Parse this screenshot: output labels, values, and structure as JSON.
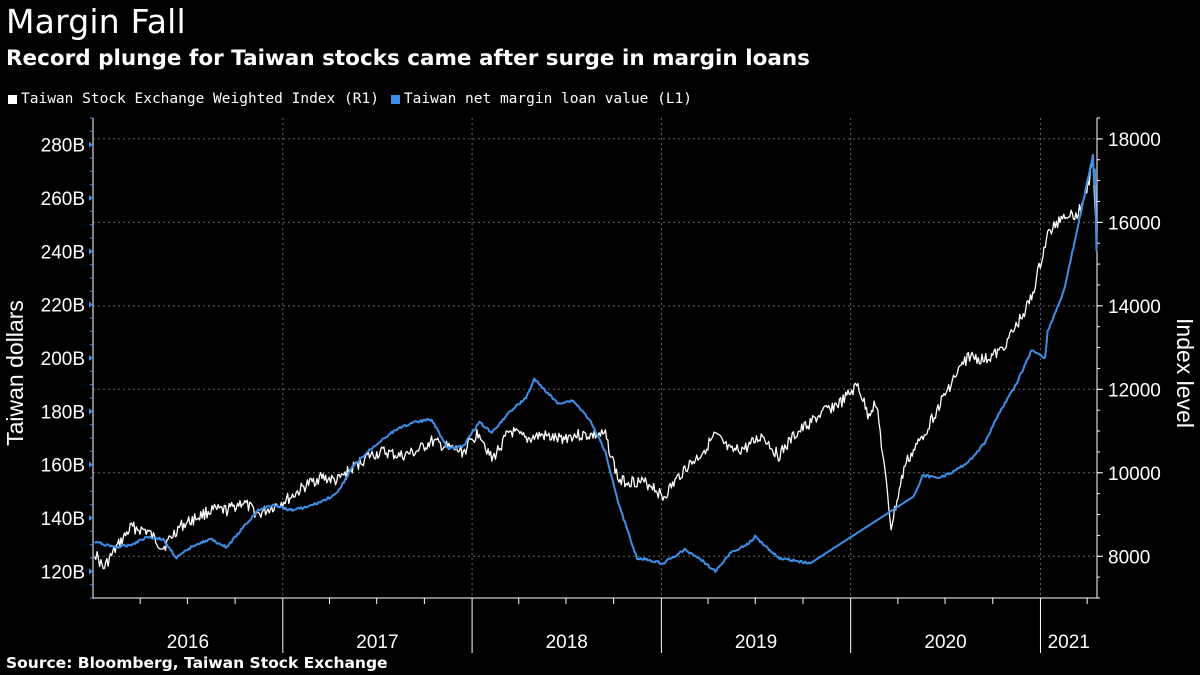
{
  "header": {
    "title": "Margin Fall",
    "subtitle": "Record plunge for Taiwan stocks came after surge in margin loans"
  },
  "footer": {
    "source": "Source: Bloomberg, Taiwan Stock Exchange"
  },
  "colors": {
    "background": "#000000",
    "index_series": "#ffffff",
    "margin_series": "#3d8fe8",
    "grid": "#666666",
    "axis": "#ffffff"
  },
  "chart_data": {
    "type": "line",
    "title": "Margin Fall",
    "subtitle": "Record plunge for Taiwan stocks came after surge in margin loans",
    "grid": true,
    "legend_placement": "top-left",
    "x_axis": {
      "type": "date",
      "range": [
        "2016-01-01",
        "2021-04-20"
      ],
      "year_labels": [
        "2016",
        "2017",
        "2018",
        "2019",
        "2020",
        "2021"
      ]
    },
    "y_axis_left": {
      "label": "Taiwan dollars",
      "range": [
        110,
        290
      ],
      "ticks": [
        120,
        140,
        160,
        180,
        200,
        220,
        240,
        260,
        280
      ],
      "tick_labels": [
        "120B",
        "140B",
        "160B",
        "180B",
        "200B",
        "220B",
        "240B",
        "260B",
        "280B"
      ]
    },
    "y_axis_right": {
      "label": "Index level",
      "range": [
        7000,
        18500
      ],
      "ticks": [
        8000,
        10000,
        12000,
        14000,
        16000,
        18000
      ],
      "tick_labels": [
        "8000",
        "10000",
        "12000",
        "14000",
        "16000",
        "18000"
      ]
    },
    "legend": [
      {
        "name": "Taiwan Stock Exchange Weighted Index  (R1)",
        "color": "#ffffff"
      },
      {
        "name": "Taiwan net margin loan value (L1)",
        "color": "#3d8fe8"
      }
    ],
    "series": [
      {
        "name": "Taiwan Stock Exchange Weighted Index  (R1)",
        "axis": "right",
        "color": "#ffffff",
        "points": [
          [
            "2016-01-04",
            8100
          ],
          [
            "2016-01-21",
            7700
          ],
          [
            "2016-02-15",
            8200
          ],
          [
            "2016-03-15",
            8700
          ],
          [
            "2016-04-15",
            8600
          ],
          [
            "2016-05-15",
            8200
          ],
          [
            "2016-06-15",
            8700
          ],
          [
            "2016-07-15",
            8900
          ],
          [
            "2016-08-15",
            9100
          ],
          [
            "2016-09-15",
            9100
          ],
          [
            "2016-10-15",
            9300
          ],
          [
            "2016-11-15",
            9000
          ],
          [
            "2016-12-15",
            9200
          ],
          [
            "2017-01-15",
            9400
          ],
          [
            "2017-02-15",
            9700
          ],
          [
            "2017-03-15",
            9900
          ],
          [
            "2017-04-15",
            9800
          ],
          [
            "2017-05-15",
            10100
          ],
          [
            "2017-06-15",
            10400
          ],
          [
            "2017-07-15",
            10500
          ],
          [
            "2017-08-15",
            10400
          ],
          [
            "2017-09-15",
            10500
          ],
          [
            "2017-10-15",
            10750
          ],
          [
            "2017-11-15",
            10600
          ],
          [
            "2017-12-15",
            10500
          ],
          [
            "2018-01-15",
            11000
          ],
          [
            "2018-02-08",
            10300
          ],
          [
            "2018-03-15",
            11000
          ],
          [
            "2018-04-15",
            10800
          ],
          [
            "2018-05-15",
            10900
          ],
          [
            "2018-06-15",
            10800
          ],
          [
            "2018-07-15",
            10900
          ],
          [
            "2018-08-15",
            10900
          ],
          [
            "2018-09-15",
            10900
          ],
          [
            "2018-10-11",
            9800
          ],
          [
            "2018-11-15",
            9800
          ],
          [
            "2018-12-15",
            9700
          ],
          [
            "2019-01-04",
            9400
          ],
          [
            "2019-02-15",
            10100
          ],
          [
            "2019-03-15",
            10400
          ],
          [
            "2019-04-15",
            10900
          ],
          [
            "2019-05-15",
            10500
          ],
          [
            "2019-06-15",
            10600
          ],
          [
            "2019-07-15",
            10900
          ],
          [
            "2019-08-15",
            10400
          ],
          [
            "2019-09-15",
            10900
          ],
          [
            "2019-10-15",
            11200
          ],
          [
            "2019-11-15",
            11500
          ],
          [
            "2019-12-15",
            11700
          ],
          [
            "2020-01-15",
            12100
          ],
          [
            "2020-02-03",
            11400
          ],
          [
            "2020-02-20",
            11700
          ],
          [
            "2020-03-19",
            8700
          ],
          [
            "2020-04-15",
            10200
          ],
          [
            "2020-05-15",
            10800
          ],
          [
            "2020-06-15",
            11500
          ],
          [
            "2020-07-15",
            12200
          ],
          [
            "2020-08-15",
            12800
          ],
          [
            "2020-09-15",
            12700
          ],
          [
            "2020-10-15",
            12900
          ],
          [
            "2020-11-15",
            13500
          ],
          [
            "2020-12-15",
            14200
          ],
          [
            "2021-01-15",
            15700
          ],
          [
            "2021-02-15",
            16200
          ],
          [
            "2021-03-15",
            16200
          ],
          [
            "2021-04-05",
            17000
          ],
          [
            "2021-04-12",
            17400
          ],
          [
            "2021-04-16",
            16500
          ],
          [
            "2021-04-19",
            15600
          ]
        ]
      },
      {
        "name": "Taiwan net margin loan value (L1)",
        "axis": "left",
        "color": "#3d8fe8",
        "points": [
          [
            "2016-01-04",
            131
          ],
          [
            "2016-02-15",
            129
          ],
          [
            "2016-03-15",
            130
          ],
          [
            "2016-04-15",
            133
          ],
          [
            "2016-05-15",
            132
          ],
          [
            "2016-06-10",
            125
          ],
          [
            "2016-07-15",
            130
          ],
          [
            "2016-08-15",
            132
          ],
          [
            "2016-09-15",
            129
          ],
          [
            "2016-10-15",
            136
          ],
          [
            "2016-11-15",
            143
          ],
          [
            "2016-12-15",
            145
          ],
          [
            "2017-01-15",
            143
          ],
          [
            "2017-02-15",
            144
          ],
          [
            "2017-03-15",
            146
          ],
          [
            "2017-04-15",
            149
          ],
          [
            "2017-05-15",
            159
          ],
          [
            "2017-06-15",
            165
          ],
          [
            "2017-07-15",
            170
          ],
          [
            "2017-08-15",
            174
          ],
          [
            "2017-09-15",
            176
          ],
          [
            "2017-10-15",
            177
          ],
          [
            "2017-11-15",
            166
          ],
          [
            "2017-12-15",
            167
          ],
          [
            "2018-01-15",
            176
          ],
          [
            "2018-02-08",
            172
          ],
          [
            "2018-03-15",
            180
          ],
          [
            "2018-04-15",
            185
          ],
          [
            "2018-05-01",
            192
          ],
          [
            "2018-06-15",
            183
          ],
          [
            "2018-07-15",
            184
          ],
          [
            "2018-08-15",
            177
          ],
          [
            "2018-09-15",
            165
          ],
          [
            "2018-10-11",
            145
          ],
          [
            "2018-11-15",
            125
          ],
          [
            "2018-12-15",
            124
          ],
          [
            "2019-01-04",
            123
          ],
          [
            "2019-02-15",
            128
          ],
          [
            "2019-03-15",
            125
          ],
          [
            "2019-04-15",
            120
          ],
          [
            "2019-05-15",
            127
          ],
          [
            "2019-06-15",
            130
          ],
          [
            "2019-07-01",
            133
          ],
          [
            "2019-08-15",
            125
          ],
          [
            "2019-09-15",
            124
          ],
          [
            "2019-10-15",
            123
          ],
          [
            "2020-05-01",
            148
          ],
          [
            "2020-05-20",
            156
          ],
          [
            "2020-06-15",
            155
          ],
          [
            "2020-07-15",
            157
          ],
          [
            "2020-08-15",
            161
          ],
          [
            "2020-09-15",
            168
          ],
          [
            "2020-10-15",
            180
          ],
          [
            "2020-11-15",
            190
          ],
          [
            "2020-12-15",
            203
          ],
          [
            "2021-01-10",
            200
          ],
          [
            "2021-01-15",
            210
          ],
          [
            "2021-02-15",
            225
          ],
          [
            "2021-03-15",
            250
          ],
          [
            "2021-04-12",
            276
          ],
          [
            "2021-04-15",
            265
          ],
          [
            "2021-04-16",
            271
          ],
          [
            "2021-04-19",
            240
          ]
        ]
      }
    ]
  }
}
